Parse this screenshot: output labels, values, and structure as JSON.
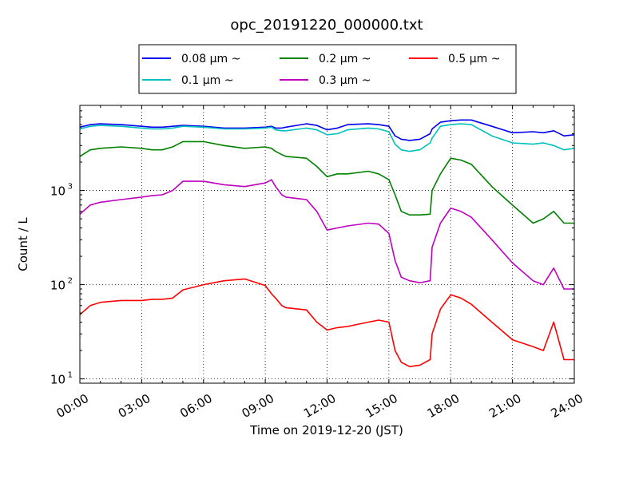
{
  "chart_data": {
    "type": "line",
    "title": "opc_20191220_000000.txt",
    "xlabel": "Time on 2019-12-20 (JST)",
    "ylabel": "Count / L",
    "yscale": "log",
    "ylim": [
      9,
      8000
    ],
    "xlim": [
      "00:00",
      "24:00"
    ],
    "x_tick_labels": [
      "00:00",
      "03:00",
      "06:00",
      "09:00",
      "12:00",
      "15:00",
      "18:00",
      "21:00",
      "24:00"
    ],
    "y_ticks": [
      {
        "value": 10,
        "label": "10",
        "exp": "1"
      },
      {
        "value": 100,
        "label": "10",
        "exp": "2"
      },
      {
        "value": 1000,
        "label": "10",
        "exp": "3"
      }
    ],
    "grid": true,
    "legend_position": "top-center",
    "x_hours": [
      0,
      0.5,
      1,
      2,
      3,
      3.5,
      4,
      4.5,
      5,
      6,
      7,
      8,
      9,
      9.3,
      9.5,
      9.8,
      10,
      11,
      11.5,
      12,
      12.5,
      13,
      14,
      14.5,
      15,
      15.3,
      15.6,
      16,
      16.5,
      17,
      17.1,
      17.5,
      18,
      18.5,
      19,
      20,
      21,
      22,
      22.5,
      23,
      23.5,
      24
    ],
    "series": [
      {
        "name": "0.08 μm ~",
        "color": "#0000ee",
        "values": [
          4700,
          5000,
          5100,
          5000,
          4800,
          4700,
          4700,
          4800,
          4900,
          4800,
          4600,
          4600,
          4700,
          4800,
          4600,
          4600,
          4700,
          5100,
          4900,
          4400,
          4600,
          5000,
          5100,
          5000,
          4800,
          3800,
          3500,
          3400,
          3500,
          4000,
          4500,
          5300,
          5500,
          5600,
          5600,
          4800,
          4100,
          4200,
          4100,
          4300,
          3800,
          3900
        ]
      },
      {
        "name": "0.1 μm ~",
        "color": "#00bfbf",
        "values": [
          4500,
          4800,
          4900,
          4800,
          4600,
          4500,
          4500,
          4600,
          4800,
          4700,
          4500,
          4500,
          4600,
          4700,
          4400,
          4300,
          4300,
          4600,
          4400,
          3900,
          4000,
          4400,
          4600,
          4500,
          4200,
          3100,
          2700,
          2600,
          2700,
          3200,
          3600,
          4800,
          5000,
          5100,
          5000,
          3800,
          3200,
          3100,
          3200,
          3000,
          2700,
          2800
        ]
      },
      {
        "name": "0.2 μm ~",
        "color": "#008000",
        "values": [
          2300,
          2700,
          2800,
          2900,
          2800,
          2700,
          2700,
          2900,
          3300,
          3300,
          3000,
          2800,
          2900,
          2800,
          2600,
          2400,
          2300,
          2200,
          1800,
          1400,
          1500,
          1500,
          1600,
          1500,
          1300,
          900,
          600,
          550,
          550,
          560,
          1000,
          1500,
          2200,
          2100,
          1900,
          1100,
          700,
          450,
          500,
          600,
          450,
          450
        ]
      },
      {
        "name": "0.3 μm ~",
        "color": "#bf00bf",
        "values": [
          560,
          700,
          750,
          800,
          850,
          880,
          900,
          1000,
          1250,
          1250,
          1150,
          1100,
          1200,
          1300,
          1100,
          900,
          850,
          800,
          600,
          380,
          400,
          420,
          450,
          440,
          350,
          180,
          120,
          110,
          105,
          110,
          250,
          450,
          650,
          600,
          520,
          300,
          170,
          110,
          100,
          150,
          90,
          90
        ]
      },
      {
        "name": "0.5 μm ~",
        "color": "#ff0000",
        "values": [
          48,
          60,
          65,
          68,
          68,
          70,
          70,
          72,
          88,
          100,
          110,
          115,
          98,
          80,
          72,
          60,
          57,
          54,
          40,
          33,
          35,
          36,
          40,
          42,
          40,
          20,
          15,
          13.5,
          14,
          16,
          30,
          55,
          78,
          72,
          62,
          40,
          26,
          22,
          20,
          40,
          16,
          16
        ]
      }
    ]
  }
}
